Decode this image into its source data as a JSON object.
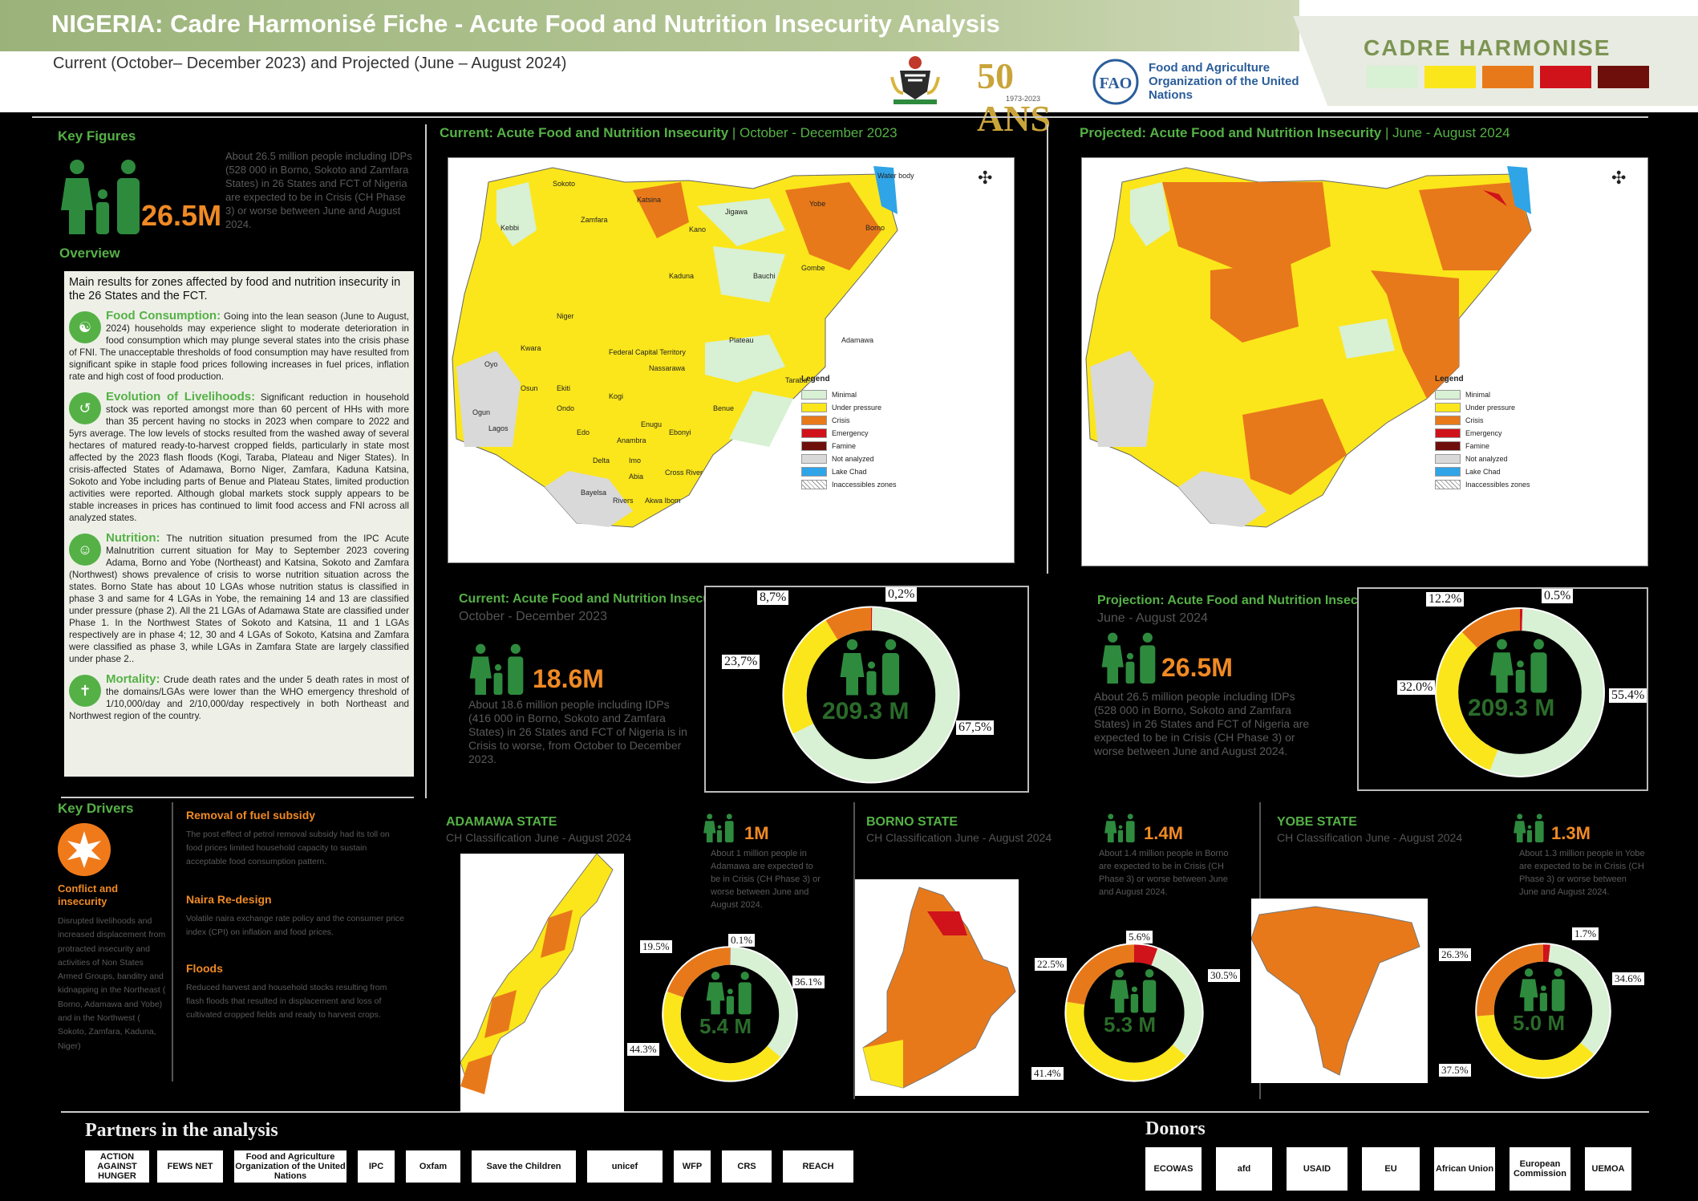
{
  "header": {
    "title": "NIGERIA: Cadre Harmonisé Fiche - Acute Food and Nutrition Insecurity Analysis",
    "subtitle": "Current (October– December 2023) and Projected (June – August 2024)",
    "fao_50_text": "50 ANS",
    "fao_50_years": "1973-2023",
    "fao_name": "Food and Agriculture Organization of the United Nations",
    "brand": "CADRE HARMONISE",
    "phase_colors": [
      "#d8f0d3",
      "#fbe61b",
      "#e8791a",
      "#d0121b",
      "#6e0f0c"
    ]
  },
  "key_figures": {
    "heading": "Key Figures",
    "number": "26.5M",
    "text": "About 26.5 million people including IDPs (528 000 in Borno, Sokoto and Zamfara States) in 26 States and FCT of Nigeria are expected to be in Crisis (CH Phase 3) or worse between June and August 2024."
  },
  "overview": {
    "heading": "Overview",
    "intro": "Main results for zones affected by food and nutrition insecurity in the 26 States and the FCT.",
    "food_title": "Food Consumption:",
    "food_text": "Going into the lean season (June to August, 2024) households may experience slight to moderate deterioration in food consumption which may plunge several states into the crisis phase of FNI. The unacceptable thresholds of food consumption may have resulted from significant spike in staple food prices following increases in fuel prices, inflation rate and high cost of food production.",
    "liv_title": "Evolution of Livelihoods:",
    "liv_text": "Significant reduction in household stock was reported amongst more than 60 percent of HHs with more than 35 percent having no stocks in 2023 when compare to 2022 and 5yrs average. The low levels of stocks resulted from the washed away of several hectares of matured ready-to-harvest cropped fields, particularly in state most affected by the 2023 flash floods (Kogi, Taraba, Plateau and Niger States). In crisis-affected States of Adamawa, Borno Niger, Zamfara, Kaduna Katsina, Sokoto and Yobe including parts of Benue and Plateau States, limited production activities were reported. Although global markets stock supply appears to be stable increases in prices has continued to limit food access and FNI across all analyzed states.",
    "nut_title": "Nutrition:",
    "nut_text": "The nutrition situation presumed from the IPC Acute Malnutrition current situation for May to September 2023 covering Adama, Borno and Yobe (Northeast) and Katsina, Sokoto and Zamfara (Northwest) shows prevalence of crisis to worse nutrition situation across the states. Borno State has about 10 LGAs whose nutrition status is classified in phase 3 and same for 4 LGAs in Yobe, the remaining 14 and 13 are classified under pressure (phase 2). All the 21 LGAs of Adamawa State are classified under Phase 1. In the Northwest States of Sokoto and Katsina, 11 and 1 LGAs respectively are in phase 4; 12, 30 and 4 LGAs of Sokoto, Katsina and Zamfara were classified as phase 3, while LGAs in Zamfara State are largely classified under phase 2..",
    "mort_title": "Mortality:",
    "mort_text": "Crude death rates and the under 5 death rates in most of the domains/LGAs were lower than the WHO emergency threshold of 1/10,000/day and 2/10,000/day respectively in both Northeast and Northwest region of the country."
  },
  "key_drivers": {
    "heading": "Key Drivers",
    "conflict_title": "Conflict and insecurity",
    "conflict_text": "Disrupted livelihoods and increased displacement from protracted insecurity and activities of Non States Armed Groups, banditry and kidnapping in the Northeast ( Borno, Adamawa and Yobe) and in the Northwest ( Sokoto, Zamfara, Kaduna, Niger)",
    "fuel_title": "Removal of fuel subsidy",
    "fuel_text": "The post effect of petrol removal subsidy had its toll on food prices limited household capacity to sustain acceptable food consumption pattern.",
    "naira_title": "Naira Re-design",
    "naira_text": "Volatile naira exchange rate policy and the consumer price index (CPI) on inflation and food prices.",
    "floods_title": "Floods",
    "floods_text": "Reduced harvest and household stocks resulting from flash floods that resulted in displacement and loss of cultivated cropped fields and ready to harvest crops."
  },
  "current_map": {
    "title_bold": "Current: Acute Food and Nutrition Insecurity",
    "title_period": "| October - December 2023",
    "labels": [
      "Sokoto",
      "Katsina",
      "Jigawa",
      "Yobe",
      "Borno",
      "Water body",
      "Kebbi",
      "Zamfara",
      "Kano",
      "Kaduna",
      "Bauchi",
      "Gombe",
      "Niger",
      "Plateau",
      "Adamawa",
      "Kwara",
      "Federal Capital Territory",
      "Nassarawa",
      "Taraba",
      "Oyo",
      "Osun",
      "Ekiti",
      "Ondo",
      "Kogi",
      "Benue",
      "Ogun",
      "Lagos",
      "Edo",
      "Anambra",
      "Enugu",
      "Ebonyi",
      "Delta",
      "Imo",
      "Abia",
      "Cross River",
      "Bayelsa",
      "Rivers",
      "Akwa Ibom"
    ]
  },
  "projected_map": {
    "title_bold": "Projected: Acute Food and Nutrition Insecurity",
    "title_period": "| June - August 2024"
  },
  "legend": {
    "title": "Legend",
    "items": [
      {
        "label": "Minimal",
        "color": "#d8f0d3"
      },
      {
        "label": "Under pressure",
        "color": "#fbe61b"
      },
      {
        "label": "Crisis",
        "color": "#e8791a"
      },
      {
        "label": "Emergency",
        "color": "#d0121b"
      },
      {
        "label": "Famine",
        "color": "#6e0f0c"
      },
      {
        "label": "Not analyzed",
        "color": "#d9d9d9"
      },
      {
        "label": "Lake Chad",
        "color": "#2fa4e7"
      },
      {
        "label": "Inaccessibles zones",
        "color": "#ffffff"
      }
    ]
  },
  "current_summary": {
    "title": "Current: Acute Food and Nutrition Insecurity",
    "period": "October - December 2023",
    "number": "18.6M",
    "text": "About 18.6 million people including IDPs (416 000 in Borno, Sokoto and Zamfara States) in 26 States and FCT of Nigeria is in Crisis to worse, from October to December 2023.",
    "total": "209.3 M"
  },
  "projected_summary": {
    "title": "Projection: Acute Food and Nutrition Insecurity",
    "period": "June - August 2024",
    "number": "26.5M",
    "text": "About 26.5 million people including IDPs (528 000 in Borno, Sokoto and Zamfara States) in 26 States and FCT of Nigeria are expected to be in Crisis (CH Phase 3) or worse between June and August 2024.",
    "total": "209.3 M"
  },
  "chart_data": [
    {
      "type": "pie",
      "title": "Current",
      "labels": [
        "Phase 1",
        "Phase 2",
        "Phase 3",
        "Phase 4"
      ],
      "values": [
        67.5,
        23.7,
        8.7,
        0.2
      ],
      "label_text": [
        "67,5%",
        "23,7%",
        "8,7%",
        "0,2%"
      ]
    },
    {
      "type": "pie",
      "title": "Projected",
      "labels": [
        "Phase 1",
        "Phase 2",
        "Phase 3",
        "Phase 4"
      ],
      "values": [
        55.4,
        32.0,
        12.2,
        0.5
      ],
      "label_text": [
        "55.4%",
        "32.0%",
        "12.2%",
        "0.5%"
      ]
    },
    {
      "type": "pie",
      "title": "Adamawa",
      "labels": [
        "Phase 1",
        "Phase 2",
        "Phase 3",
        "Phase 4"
      ],
      "values": [
        36.1,
        44.3,
        19.5,
        0.1
      ],
      "label_text": [
        "36.1%",
        "44.3%",
        "19.5%",
        "0.1%"
      ]
    },
    {
      "type": "pie",
      "title": "Borno",
      "labels": [
        "Phase 1",
        "Phase 2",
        "Phase 3",
        "Phase 4"
      ],
      "values": [
        30.5,
        41.4,
        22.5,
        5.6
      ],
      "label_text": [
        "30.5%",
        "41.4%",
        "22.5%",
        "5.6%"
      ]
    },
    {
      "type": "pie",
      "title": "Yobe",
      "labels": [
        "Phase 1",
        "Phase 2",
        "Phase 3",
        "Phase 4"
      ],
      "values": [
        34.6,
        37.5,
        26.3,
        1.7
      ],
      "label_text": [
        "34.6%",
        "37.5%",
        "26.3%",
        "1.7%"
      ]
    }
  ],
  "states": {
    "adamawa": {
      "name": "ADAMAWA STATE",
      "period": "CH Classification June - August 2024",
      "number": "1M",
      "text": "About 1 million people in Adamawa are expected to be in Crisis (CH Phase 3) or worse between June and August 2024.",
      "total": "5.4 M"
    },
    "borno": {
      "name": "BORNO STATE",
      "period": "CH Classification June - August 2024",
      "number": "1.4M",
      "text": "About 1.4 million people in Borno are expected to be in Crisis (CH Phase 3) or worse between June and August 2024.",
      "total": "5.3 M"
    },
    "yobe": {
      "name": "YOBE STATE",
      "period": "CH Classification June - August 2024",
      "number": "1.3M",
      "text": "About 1.3 million people in Yobe are expected to be in Crisis (CH Phase 3) or worse between June and August 2024.",
      "total": "5.0 M"
    }
  },
  "partners": {
    "heading": "Partners in the analysis",
    "items": [
      "ACTION AGAINST HUNGER",
      "FEWS NET",
      "Food and Agriculture Organization of the United Nations",
      "IPC",
      "Oxfam",
      "Save the Children",
      "unicef",
      "WFP",
      "CRS",
      "REACH"
    ]
  },
  "donors": {
    "heading": "Donors",
    "items": [
      "ECOWAS",
      "afd",
      "USAID",
      "EU",
      "African Union",
      "European Commission",
      "UEMOA"
    ]
  }
}
